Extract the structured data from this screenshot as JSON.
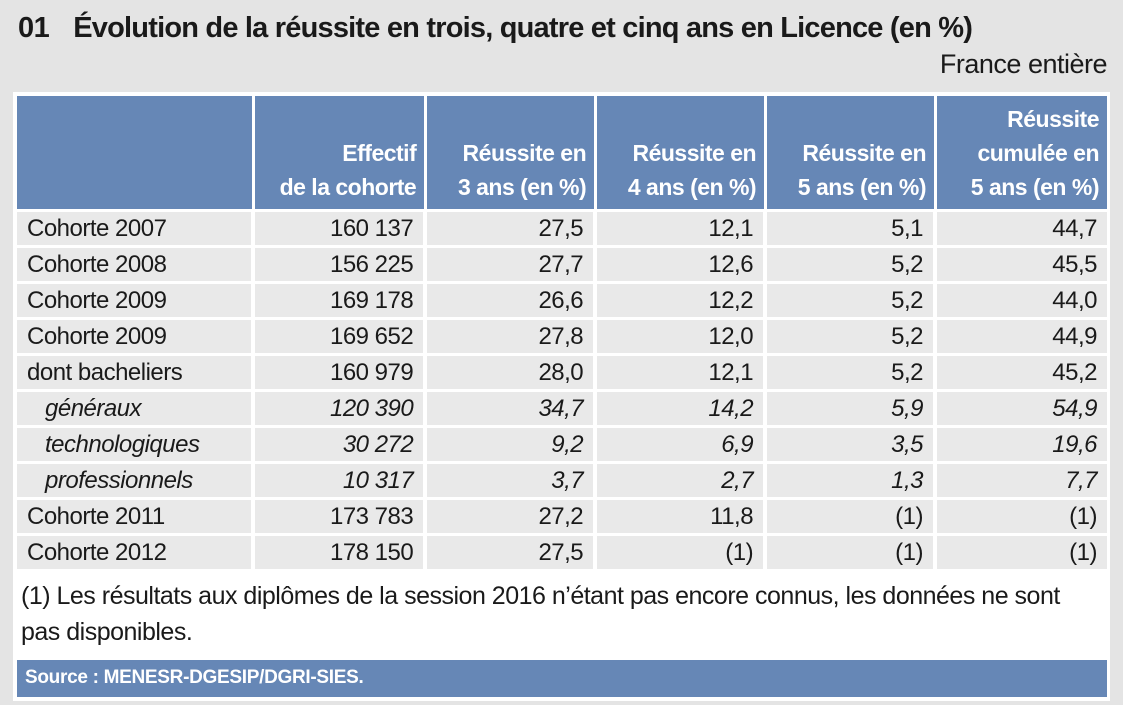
{
  "header": {
    "number": "01",
    "title": "Évolution de la réussite en trois, quatre et cinq ans en Licence (en %)",
    "region": "France entière"
  },
  "table": {
    "columns": [
      "",
      "Effectif\nde la cohorte",
      "Réussite en\n3 ans (en %)",
      "Réussite en\n4 ans (en %)",
      "Réussite en\n5 ans (en %)",
      "Réussite\ncumulée en\n5 ans (en %)"
    ],
    "rows": [
      {
        "label": "Cohorte 2007",
        "cells": [
          "160 137",
          "27,5",
          "12,1",
          "5,1",
          "44,7"
        ],
        "style": "normal"
      },
      {
        "label": "Cohorte 2008",
        "cells": [
          "156 225",
          "27,7",
          "12,6",
          "5,2",
          "45,5"
        ],
        "style": "normal"
      },
      {
        "label": "Cohorte 2009",
        "cells": [
          "169 178",
          "26,6",
          "12,2",
          "5,2",
          "44,0"
        ],
        "style": "normal"
      },
      {
        "label": "Cohorte 2009",
        "cells": [
          "169 652",
          "27,8",
          "12,0",
          "5,2",
          "44,9"
        ],
        "style": "normal"
      },
      {
        "label": "dont bacheliers",
        "cells": [
          "160 979",
          "28,0",
          "12,1",
          "5,2",
          "45,2"
        ],
        "style": "normal"
      },
      {
        "label": "généraux",
        "cells": [
          "120 390",
          "34,7",
          "14,2",
          "5,9",
          "54,9"
        ],
        "style": "italic"
      },
      {
        "label": "technologiques",
        "cells": [
          "30 272",
          "9,2",
          "6,9",
          "3,5",
          "19,6"
        ],
        "style": "italic"
      },
      {
        "label": "professionnels",
        "cells": [
          "10 317",
          "3,7",
          "2,7",
          "1,3",
          "7,7"
        ],
        "style": "italic"
      },
      {
        "label": "Cohorte 2011",
        "cells": [
          "173 783",
          "27,2",
          "11,8",
          "(1)",
          "(1)"
        ],
        "style": "normal"
      },
      {
        "label": "Cohorte 2012",
        "cells": [
          "178 150",
          "27,5",
          "(1)",
          "(1)",
          "(1)"
        ],
        "style": "normal"
      }
    ]
  },
  "footnote": "(1) Les résultats aux diplômes de la session 2016 n’étant pas encore connus, les données ne sont pas disponibles.",
  "source": "Source : MENESR-DGESIP/DGRI-SIES.",
  "colors": {
    "header_blue": "#6687b6",
    "row_gray": "#e9e9e9",
    "page_gray": "#e4e4e4",
    "header_text": "#ffffff"
  }
}
